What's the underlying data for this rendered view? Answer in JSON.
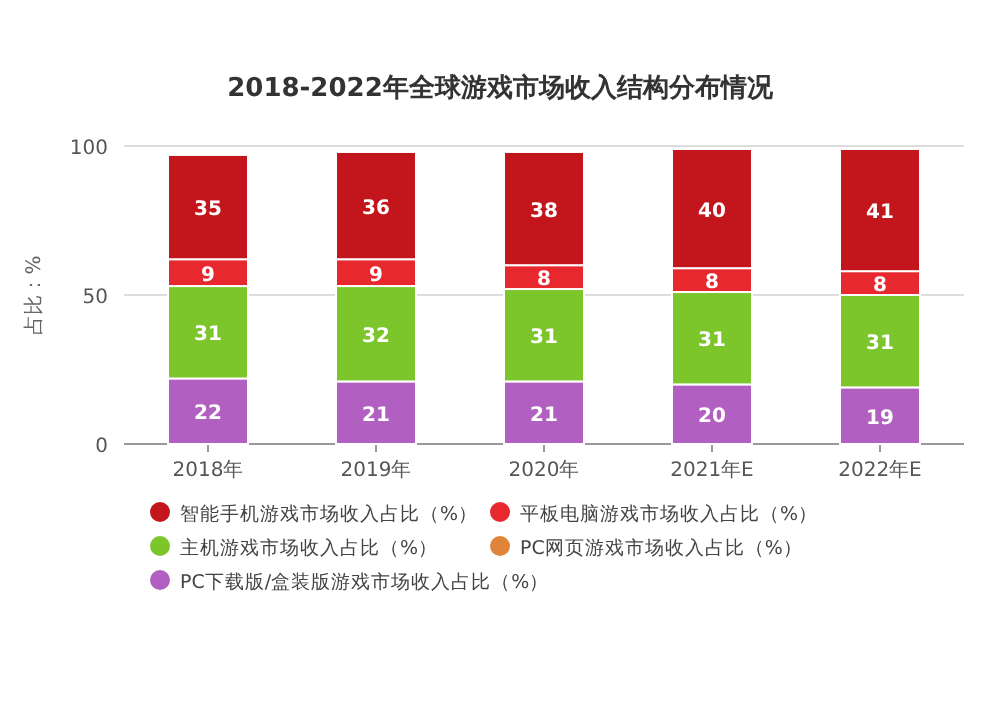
{
  "chart_data": {
    "type": "bar",
    "stacked": true,
    "title": "2018-2022年全球游戏市场收入结构分布情况",
    "ylabel": "占比：%",
    "categories": [
      "2018年",
      "2019年",
      "2020年",
      "2021年E",
      "2022年E"
    ],
    "series": [
      {
        "name": "PC下载版/盒装版游戏市场收入占比（%）",
        "color": "#b25fc2",
        "values": [
          22,
          21,
          21,
          20,
          19
        ]
      },
      {
        "name": "PC网页游戏市场收入占比（%）",
        "color": "#e0843a",
        "values": [
          null,
          null,
          null,
          null,
          null
        ]
      },
      {
        "name": "主机游戏市场收入占比（%）",
        "color": "#7cc52a",
        "values": [
          31,
          32,
          31,
          31,
          31
        ]
      },
      {
        "name": "平板电脑游戏市场收入占比（%）",
        "color": "#e8282f",
        "values": [
          9,
          9,
          8,
          8,
          8
        ]
      },
      {
        "name": "智能手机游戏市场收入占比（%）",
        "color": "#c3161c",
        "values": [
          35,
          36,
          38,
          40,
          41
        ]
      }
    ],
    "ylim": [
      0,
      100
    ],
    "yticks": [
      0,
      50,
      100
    ],
    "grid": "y",
    "legend": "bottom",
    "data_labels": true
  }
}
